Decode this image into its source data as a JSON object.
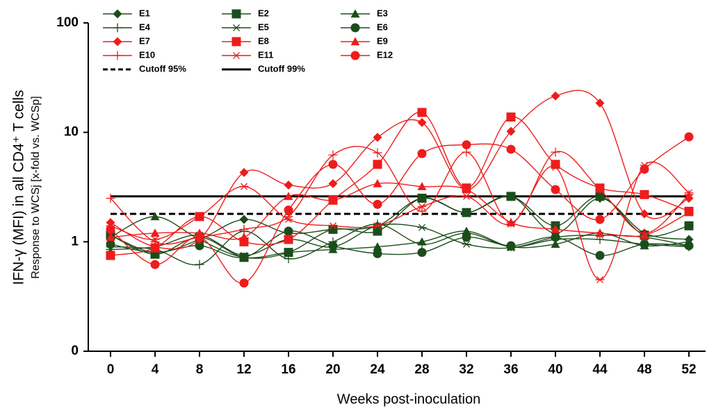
{
  "chart_data": {
    "type": "line",
    "y_label": "IFN-γ (MFI) in all CD4⁺ T cells",
    "y_label_2": "Response to WCSj [x-fold vs. WCSp]",
    "x_label": "Weeks post-inoculation",
    "log_y": true,
    "x": [
      0,
      4,
      8,
      12,
      16,
      20,
      24,
      28,
      32,
      36,
      40,
      44,
      48,
      52
    ],
    "xlim": [
      -2,
      53.5
    ],
    "xticks": [
      0,
      4,
      8,
      12,
      16,
      20,
      24,
      28,
      32,
      36,
      40,
      44,
      48,
      52
    ],
    "ylim": [
      0.1,
      100
    ],
    "yticks": [
      {
        "value": 0.1,
        "label": "0"
      },
      1,
      10,
      100
    ],
    "series": [
      {
        "name": "E1",
        "color": "#1b4d1b",
        "marker": "diamond",
        "values": [
          1.15,
          0.8,
          1.05,
          1.6,
          1.2,
          1.3,
          1.4,
          2.5,
          1.85,
          2.6,
          1.2,
          2.5,
          1.2,
          1.05
        ]
      },
      {
        "name": "E2",
        "color": "#1b4d1b",
        "marker": "square",
        "values": [
          1.15,
          0.77,
          1.1,
          0.72,
          0.8,
          1.3,
          1.25,
          2.5,
          1.85,
          2.6,
          1.4,
          2.6,
          1.15,
          1.4
        ]
      },
      {
        "name": "E3",
        "color": "#1b4d1b",
        "marker": "triangle",
        "values": [
          1.1,
          1.7,
          1.05,
          0.72,
          0.8,
          0.85,
          0.9,
          1.0,
          1.25,
          0.9,
          0.95,
          1.2,
          0.92,
          1.0
        ]
      },
      {
        "name": "E4",
        "color": "#1b4d1b",
        "marker": "plus",
        "values": [
          0.9,
          0.85,
          0.62,
          1.25,
          0.7,
          1.0,
          1.45,
          0.95,
          1.2,
          0.9,
          1.05,
          1.05,
          0.95,
          0.9
        ]
      },
      {
        "name": "E5",
        "color": "#1b4d1b",
        "marker": "asterisk",
        "values": [
          0.85,
          0.9,
          1.15,
          0.75,
          1.05,
          0.9,
          1.4,
          1.35,
          0.95,
          0.88,
          1.1,
          1.15,
          1.1,
          0.92
        ]
      },
      {
        "name": "E6",
        "color": "#1b4d1b",
        "marker": "circle",
        "values": [
          0.95,
          0.8,
          0.92,
          0.72,
          1.25,
          0.92,
          0.78,
          0.8,
          1.1,
          0.92,
          1.1,
          0.75,
          0.95,
          0.92
        ]
      },
      {
        "name": "E7",
        "color": "#ee1c1c",
        "marker": "diamond",
        "values": [
          1.5,
          0.9,
          1.05,
          4.3,
          3.3,
          3.4,
          9.0,
          12.3,
          3.0,
          10.2,
          21.5,
          18.5,
          1.8,
          2.5
        ]
      },
      {
        "name": "E8",
        "color": "#ee1c1c",
        "marker": "square",
        "values": [
          0.75,
          0.88,
          1.7,
          1.0,
          1.05,
          2.4,
          5.1,
          15.2,
          3.1,
          13.8,
          5.1,
          3.1,
          2.7,
          1.9
        ]
      },
      {
        "name": "E9",
        "color": "#ee1c1c",
        "marker": "triangle",
        "values": [
          1.1,
          1.2,
          1.2,
          1.1,
          2.6,
          2.4,
          3.4,
          3.2,
          3.0,
          1.5,
          1.3,
          1.2,
          1.15,
          1.85
        ]
      },
      {
        "name": "E10",
        "color": "#ee1c1c",
        "marker": "plus",
        "values": [
          2.5,
          1.0,
          1.1,
          1.3,
          1.7,
          6.2,
          6.5,
          1.9,
          6.6,
          1.5,
          6.6,
          3.0,
          1.2,
          2.7
        ]
      },
      {
        "name": "E11",
        "color": "#ee1c1c",
        "marker": "asterisk",
        "values": [
          1.4,
          1.05,
          1.7,
          3.2,
          1.6,
          1.4,
          1.4,
          2.1,
          2.6,
          1.45,
          4.8,
          0.45,
          5.0,
          2.8
        ]
      },
      {
        "name": "E12",
        "color": "#ee1c1c",
        "marker": "circle",
        "values": [
          1.3,
          0.62,
          1.1,
          0.42,
          1.95,
          5.1,
          2.2,
          6.4,
          7.7,
          7.0,
          3.0,
          1.6,
          4.6,
          9.1
        ]
      }
    ],
    "reference_lines": [
      {
        "name": "Cutoff 95%",
        "value": 1.8,
        "color": "#000000",
        "dashed": true
      },
      {
        "name": "Cutoff 99%",
        "value": 2.6,
        "color": "#000000",
        "dashed": false
      }
    ]
  }
}
